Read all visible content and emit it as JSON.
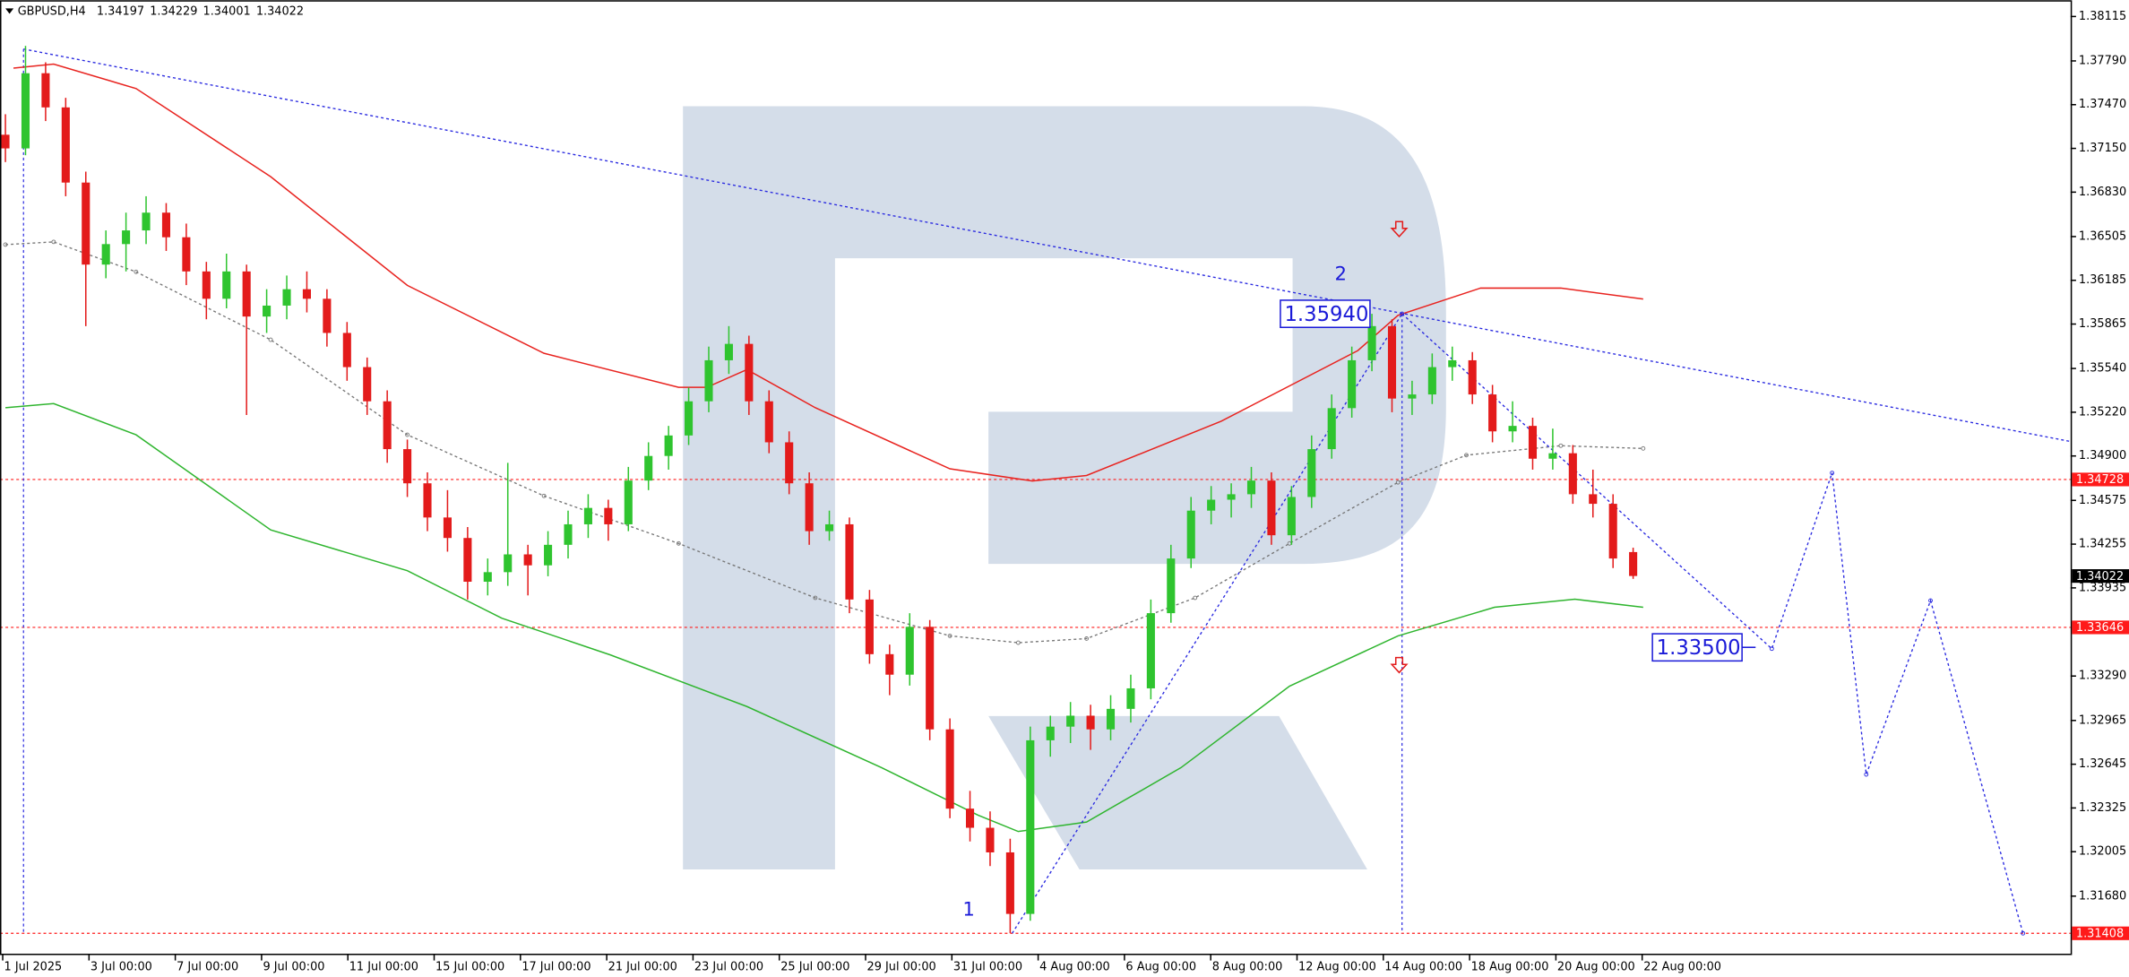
{
  "chart_data": {
    "type": "candlestick",
    "title": "GBPUSD,H4",
    "up_color": "#2fc42f",
    "down_color": "#e31b1b",
    "ohlc": [
      [
        1.3725,
        1.374,
        1.3705,
        1.3715
      ],
      [
        1.3715,
        1.379,
        1.371,
        1.377
      ],
      [
        1.377,
        1.3778,
        1.3735,
        1.3745
      ],
      [
        1.3745,
        1.3752,
        1.368,
        1.369
      ],
      [
        1.369,
        1.3698,
        1.3585,
        1.363
      ],
      [
        1.363,
        1.3655,
        1.362,
        1.3645
      ],
      [
        1.3645,
        1.3668,
        1.3625,
        1.3655
      ],
      [
        1.3655,
        1.368,
        1.3645,
        1.3668
      ],
      [
        1.3668,
        1.3675,
        1.364,
        1.365
      ],
      [
        1.365,
        1.366,
        1.3615,
        1.3625
      ],
      [
        1.3625,
        1.3632,
        1.359,
        1.3605
      ],
      [
        1.3605,
        1.3638,
        1.3598,
        1.3625
      ],
      [
        1.3625,
        1.363,
        1.352,
        1.3592
      ],
      [
        1.3592,
        1.3612,
        1.358,
        1.36
      ],
      [
        1.36,
        1.3622,
        1.359,
        1.3612
      ],
      [
        1.3612,
        1.3625,
        1.3595,
        1.3605
      ],
      [
        1.3605,
        1.3612,
        1.357,
        1.358
      ],
      [
        1.358,
        1.3588,
        1.3545,
        1.3555
      ],
      [
        1.3555,
        1.3562,
        1.352,
        1.353
      ],
      [
        1.353,
        1.3538,
        1.3485,
        1.3495
      ],
      [
        1.3495,
        1.3502,
        1.346,
        1.347
      ],
      [
        1.347,
        1.3478,
        1.3435,
        1.3445
      ],
      [
        1.3445,
        1.3465,
        1.342,
        1.343
      ],
      [
        1.343,
        1.3438,
        1.3385,
        1.3398
      ],
      [
        1.3398,
        1.3415,
        1.3388,
        1.3405
      ],
      [
        1.3405,
        1.3485,
        1.3395,
        1.3418
      ],
      [
        1.3418,
        1.3425,
        1.3388,
        1.341
      ],
      [
        1.341,
        1.3435,
        1.3402,
        1.3425
      ],
      [
        1.3425,
        1.345,
        1.3415,
        1.344
      ],
      [
        1.344,
        1.3462,
        1.343,
        1.3452
      ],
      [
        1.3452,
        1.3458,
        1.3428,
        1.344
      ],
      [
        1.344,
        1.3482,
        1.3435,
        1.3472
      ],
      [
        1.3472,
        1.35,
        1.3465,
        1.349
      ],
      [
        1.349,
        1.3512,
        1.348,
        1.3505
      ],
      [
        1.3505,
        1.354,
        1.3498,
        1.353
      ],
      [
        1.353,
        1.357,
        1.3522,
        1.356
      ],
      [
        1.356,
        1.3585,
        1.355,
        1.3572
      ],
      [
        1.3572,
        1.3578,
        1.352,
        1.353
      ],
      [
        1.353,
        1.3538,
        1.3492,
        1.35
      ],
      [
        1.35,
        1.3508,
        1.3462,
        1.347
      ],
      [
        1.347,
        1.3478,
        1.3425,
        1.3435
      ],
      [
        1.3435,
        1.345,
        1.3428,
        1.344
      ],
      [
        1.344,
        1.3445,
        1.3375,
        1.3385
      ],
      [
        1.3385,
        1.3392,
        1.3338,
        1.3345
      ],
      [
        1.3345,
        1.3352,
        1.3315,
        1.333
      ],
      [
        1.333,
        1.3375,
        1.3322,
        1.3365
      ],
      [
        1.3365,
        1.337,
        1.3282,
        1.329
      ],
      [
        1.329,
        1.3298,
        1.3225,
        1.3232
      ],
      [
        1.3232,
        1.3245,
        1.3208,
        1.3218
      ],
      [
        1.3218,
        1.323,
        1.319,
        1.32
      ],
      [
        1.32,
        1.321,
        1.3141,
        1.3155
      ],
      [
        1.3155,
        1.3292,
        1.315,
        1.3282
      ],
      [
        1.3282,
        1.33,
        1.327,
        1.3292
      ],
      [
        1.3292,
        1.331,
        1.328,
        1.33
      ],
      [
        1.33,
        1.3308,
        1.3275,
        1.329
      ],
      [
        1.329,
        1.3315,
        1.3282,
        1.3305
      ],
      [
        1.3305,
        1.333,
        1.3295,
        1.332
      ],
      [
        1.332,
        1.3385,
        1.3312,
        1.3375
      ],
      [
        1.3375,
        1.3425,
        1.3368,
        1.3415
      ],
      [
        1.3415,
        1.346,
        1.3408,
        1.345
      ],
      [
        1.345,
        1.3468,
        1.344,
        1.3458
      ],
      [
        1.3458,
        1.347,
        1.3445,
        1.3462
      ],
      [
        1.3462,
        1.3482,
        1.3452,
        1.3472
      ],
      [
        1.3472,
        1.3478,
        1.3425,
        1.3432
      ],
      [
        1.3432,
        1.3468,
        1.3425,
        1.346
      ],
      [
        1.346,
        1.3505,
        1.3452,
        1.3495
      ],
      [
        1.3495,
        1.3535,
        1.3488,
        1.3525
      ],
      [
        1.3525,
        1.357,
        1.3518,
        1.356
      ],
      [
        1.356,
        1.3594,
        1.3552,
        1.3585
      ],
      [
        1.3585,
        1.359,
        1.3522,
        1.3532
      ],
      [
        1.3532,
        1.3545,
        1.352,
        1.3535
      ],
      [
        1.3535,
        1.3565,
        1.3528,
        1.3555
      ],
      [
        1.3555,
        1.357,
        1.3545,
        1.356
      ],
      [
        1.356,
        1.3566,
        1.3528,
        1.3535
      ],
      [
        1.3535,
        1.3542,
        1.35,
        1.3508
      ],
      [
        1.3508,
        1.353,
        1.35,
        1.3512
      ],
      [
        1.3512,
        1.3518,
        1.348,
        1.3488
      ],
      [
        1.3488,
        1.351,
        1.348,
        1.3492
      ],
      [
        1.3492,
        1.3498,
        1.3455,
        1.3462
      ],
      [
        1.3462,
        1.348,
        1.3445,
        1.3455
      ],
      [
        1.3455,
        1.3462,
        1.3408,
        1.3415
      ],
      [
        1.34197,
        1.34229,
        1.34001,
        1.34022
      ]
    ],
    "series": [
      {
        "color": "#e8231f",
        "dash": false,
        "x": [
          0.4,
          2.4,
          6.5,
          13.2,
          20,
          26.8,
          33.5,
          34.9,
          36.9,
          40.3,
          47,
          51.1,
          53.8,
          60.5,
          67.3,
          69.3,
          73.4,
          77.4,
          81.5
        ],
        "values": [
          1.37737,
          1.37767,
          1.37588,
          1.36943,
          1.36148,
          1.35651,
          1.35402,
          1.35402,
          1.35532,
          1.35253,
          1.34806,
          1.34717,
          1.34757,
          1.35154,
          1.35671,
          1.35929,
          1.36128,
          1.36128,
          1.36048
        ]
      },
      {
        "color": "#2fb52f",
        "dash": false,
        "x": [
          0,
          2.4,
          6.5,
          13.2,
          20,
          24.7,
          30.1,
          36.9,
          43.6,
          48.4,
          50.4,
          53.8,
          58.5,
          63.9,
          69.3,
          74.1,
          78.1,
          81.5
        ],
        "values": [
          1.35253,
          1.35283,
          1.35055,
          1.34359,
          1.34061,
          1.33713,
          1.33445,
          1.33067,
          1.3262,
          1.32272,
          1.32153,
          1.32222,
          1.3262,
          1.33216,
          1.33584,
          1.33793,
          1.33852,
          1.33793
        ]
      },
      {
        "color": "#777777",
        "dash": true,
        "x": [
          0,
          2.4,
          6.5,
          13.2,
          20,
          26.8,
          33.5,
          40.3,
          47,
          50.4,
          53.8,
          59.2,
          63.9,
          69.3,
          72.7,
          77.4,
          81.5
        ],
        "values": [
          1.36446,
          1.36466,
          1.36247,
          1.3575,
          1.35055,
          1.34608,
          1.3426,
          1.33862,
          1.33584,
          1.33534,
          1.33564,
          1.33862,
          1.3426,
          1.34707,
          1.34906,
          1.34975,
          1.34955
        ]
      },
      {
        "color": "#2a2ae0",
        "dash": true,
        "x": [
          0.9,
          102.8
        ],
        "values": [
          1.37877,
          1.35005
        ]
      },
      {
        "color": "#2a2ae0",
        "dash": true,
        "x": [
          50.1,
          69.5
        ],
        "values": [
          1.31408,
          1.3594
        ]
      },
      {
        "color": "#2a2ae0",
        "dash": true,
        "x": [
          69.5,
          87.9,
          90.9,
          92.6,
          95.8,
          100.4
        ],
        "values": [
          1.3594,
          1.3349,
          1.34776,
          1.3257,
          1.33842,
          1.31408
        ]
      }
    ],
    "vlines": [
      {
        "x": 0.9,
        "from": 1.31408,
        "to": 1.37877,
        "color": "#2a2ae0"
      },
      {
        "x": 69.5,
        "from": 1.31408,
        "to": 1.3594,
        "color": "#2a2ae0"
      }
    ],
    "xlim": [
      -0.27,
      102.77
    ],
    "ylim": [
      1.31249,
      1.38234
    ],
    "yticks": [
      1.38115,
      {
        "value": 1.3779,
        "label": "1.37790"
      },
      {
        "value": 1.3747,
        "label": "1.37470"
      },
      {
        "value": 1.3715,
        "label": "1.37150"
      },
      {
        "value": 1.3683,
        "label": "1.36830"
      },
      1.36505,
      1.36185,
      1.35865,
      {
        "value": 1.3554,
        "label": "1.35540"
      },
      {
        "value": 1.3522,
        "label": "1.35220"
      },
      {
        "value": 1.349,
        "label": "1.34900"
      },
      1.34575,
      1.34255,
      1.33935,
      {
        "value": 1.3329,
        "label": "1.33290"
      },
      1.32965,
      1.32645,
      1.32325,
      1.32005,
      {
        "value": 1.3168,
        "label": "1.31680"
      }
    ],
    "price_tags": [
      {
        "value": 1.34728,
        "color": "#ff1a1a",
        "line": true
      },
      {
        "value": 1.34022,
        "color": "#000000",
        "line": false
      },
      {
        "value": 1.33646,
        "color": "#ff1a1a",
        "line": true
      },
      {
        "value": 1.31408,
        "color": "#ff1a1a",
        "line": true
      }
    ],
    "level_boxes": [
      {
        "value": 1.3594,
        "label": "1.35940"
      },
      {
        "value": 1.335,
        "label": "1.33500"
      }
    ],
    "wave_labels": [
      "1",
      "2"
    ],
    "xtick_labels": [
      "1 Jul 2025",
      "3 Jul 00:00",
      "7 Jul 00:00",
      "9 Jul 00:00",
      "11 Jul 00:00",
      "15 Jul 00:00",
      "17 Jul 00:00",
      "21 Jul 00:00",
      "23 Jul 00:00",
      "25 Jul 00:00",
      "29 Jul 00:00",
      "31 Jul 00:00",
      "4 Aug 00:00",
      "6 Aug 00:00",
      "8 Aug 00:00",
      "12 Aug 00:00",
      "14 Aug 00:00",
      "18 Aug 00:00",
      "20 Aug 00:00",
      "22 Aug 00:00"
    ]
  }
}
